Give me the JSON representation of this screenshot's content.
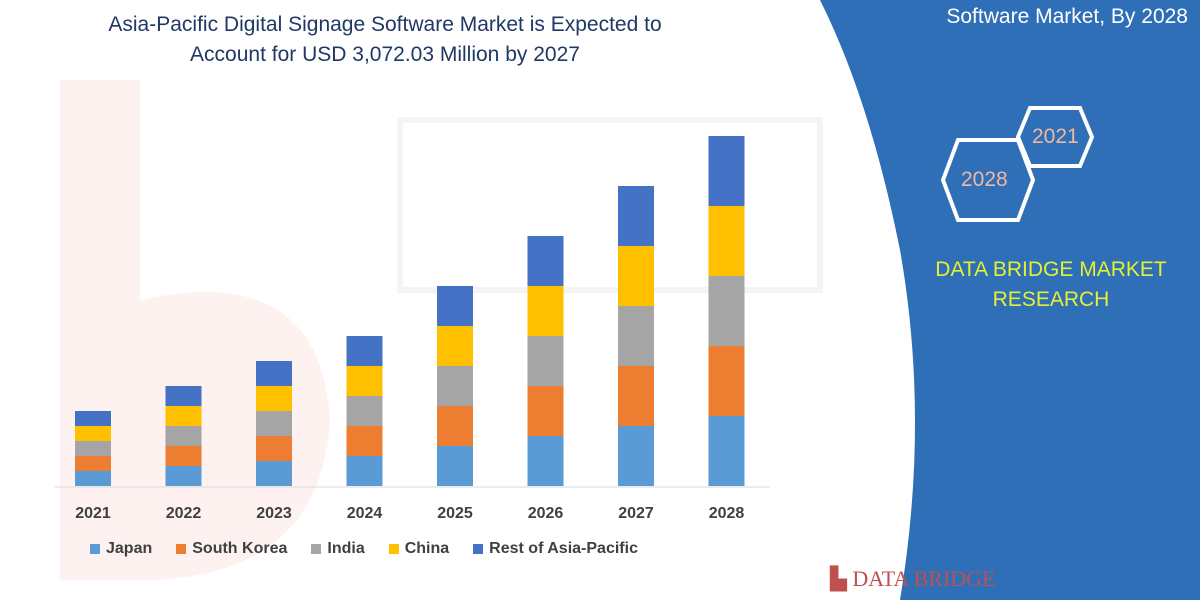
{
  "chart_data": {
    "type": "bar",
    "stacked": true,
    "title": "Asia-Pacific Digital Signage Software Market is Expected to Account for USD 3,072.03 Million by 2027",
    "categories": [
      "2021",
      "2022",
      "2023",
      "2024",
      "2025",
      "2026",
      "2027",
      "2028"
    ],
    "series": [
      {
        "name": "Japan",
        "color": "#5b9bd5",
        "values": [
          15,
          20,
          25,
          30,
          40,
          50,
          60,
          70
        ]
      },
      {
        "name": "South Korea",
        "color": "#ed7d31",
        "values": [
          15,
          20,
          25,
          30,
          40,
          50,
          60,
          70
        ]
      },
      {
        "name": "India",
        "color": "#a5a5a5",
        "values": [
          15,
          20,
          25,
          30,
          40,
          50,
          60,
          70
        ]
      },
      {
        "name": "China",
        "color": "#ffc000",
        "values": [
          15,
          20,
          25,
          30,
          40,
          50,
          60,
          70
        ]
      },
      {
        "name": "Rest of Asia-Pacific",
        "color": "#4472c4",
        "values": [
          15,
          20,
          25,
          30,
          40,
          50,
          60,
          70
        ]
      }
    ],
    "legend": "bottom",
    "grid": false,
    "yaxis_shown": false
  },
  "title_line1": "Asia-Pacific Digital Signage Software Market is Expected to",
  "title_line2": "Account for USD 3,072.03 Million by 2027",
  "side_panel": {
    "title": "Software Market, By 2028",
    "hex_1": "2021",
    "hex_2": "2028",
    "brand_line1": "DATA BRIDGE MARKET",
    "brand_line2": "RESEARCH",
    "color": "#2e6fb7"
  },
  "logo_text": "DATA BRIDGE"
}
